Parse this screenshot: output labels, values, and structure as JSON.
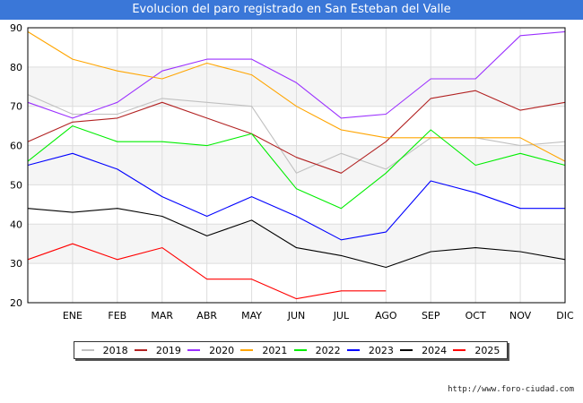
{
  "header": {
    "title": "Evolucion del paro registrado en San Esteban del Valle"
  },
  "footer": {
    "url": "http://www.foro-ciudad.com"
  },
  "chart_data": {
    "type": "line",
    "title": "Evolucion del paro registrado en San Esteban del Valle",
    "xlabel": "",
    "ylabel": "",
    "categories": [
      "",
      "ENE",
      "FEB",
      "MAR",
      "ABR",
      "MAY",
      "JUN",
      "JUL",
      "AGO",
      "SEP",
      "OCT",
      "NOV",
      "DIC"
    ],
    "ylim": [
      20,
      90
    ],
    "yticks": [
      20,
      30,
      40,
      50,
      60,
      70,
      80,
      90
    ],
    "grid": true,
    "legend": "bottom",
    "series": [
      {
        "name": "2018",
        "color": "#c0c0c0",
        "values": [
          73,
          68,
          68,
          72,
          71,
          70,
          53,
          58,
          54,
          62,
          62,
          60,
          61
        ]
      },
      {
        "name": "2019",
        "color": "#b22222",
        "values": [
          61,
          66,
          67,
          71,
          67,
          63,
          57,
          53,
          61,
          72,
          74,
          69,
          71
        ]
      },
      {
        "name": "2020",
        "color": "#9b30ff",
        "values": [
          71,
          67,
          71,
          79,
          82,
          82,
          76,
          67,
          68,
          77,
          77,
          88,
          89
        ]
      },
      {
        "name": "2021",
        "color": "#ffa500",
        "values": [
          89,
          82,
          79,
          77,
          81,
          78,
          70,
          64,
          62,
          62,
          62,
          62,
          56
        ]
      },
      {
        "name": "2022",
        "color": "#00ee00",
        "values": [
          56,
          65,
          61,
          61,
          60,
          63,
          49,
          44,
          53,
          64,
          55,
          58,
          55
        ]
      },
      {
        "name": "2023",
        "color": "#0000ff",
        "values": [
          55,
          58,
          54,
          47,
          42,
          47,
          42,
          36,
          38,
          51,
          48,
          44,
          44
        ]
      },
      {
        "name": "2024",
        "color": "#000000",
        "values": [
          44,
          43,
          44,
          42,
          37,
          41,
          34,
          32,
          29,
          33,
          34,
          33,
          31
        ]
      },
      {
        "name": "2025",
        "color": "#ff0000",
        "values": [
          31,
          35,
          31,
          34,
          26,
          26,
          21,
          23,
          23,
          null,
          null,
          null,
          null
        ]
      }
    ]
  }
}
